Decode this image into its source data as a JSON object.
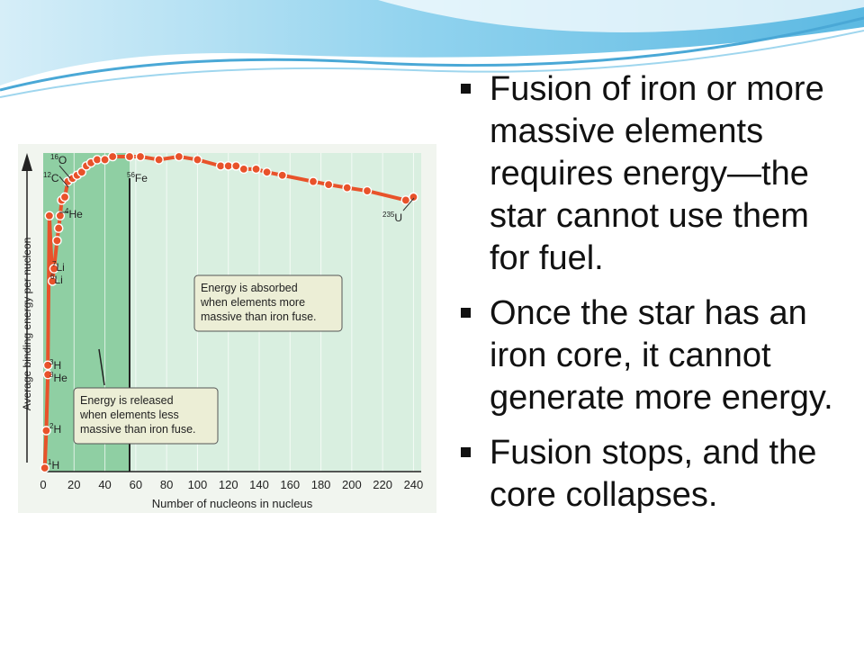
{
  "slide": {
    "bullets": [
      {
        "text": "Fusion of iron or more massive elements requires energy—the star cannot use them for fuel."
      },
      {
        "text": "Once the star has an iron core, it cannot generate more energy."
      },
      {
        "text": "Fusion stops, and the core collapses."
      }
    ]
  },
  "colors": {
    "curve": "#e8522a",
    "released_region": "#8fcfa3",
    "absorbed_region": "#d9efe0",
    "callout_bg": "#eceed6",
    "header_blue": "#6fc3e6"
  },
  "chart_data": {
    "type": "line",
    "xlabel": "Number of nucleons in nucleus",
    "ylabel": "Average binding energy per nucleon",
    "xlim": [
      0,
      245
    ],
    "ylim": [
      0,
      1
    ],
    "xticks": [
      "0",
      "20",
      "40",
      "60",
      "80",
      "100",
      "120",
      "140",
      "160",
      "180",
      "200",
      "220",
      "240"
    ],
    "xtick_values": [
      0,
      20,
      40,
      60,
      80,
      100,
      120,
      140,
      160,
      180,
      200,
      220,
      240
    ],
    "iron_line_x": 56,
    "points": [
      [
        1,
        0.0
      ],
      [
        2,
        0.12
      ],
      [
        3,
        0.3
      ],
      [
        3,
        0.33
      ],
      [
        4,
        0.81
      ],
      [
        6,
        0.6
      ],
      [
        7,
        0.64
      ],
      [
        9,
        0.73
      ],
      [
        10,
        0.77
      ],
      [
        11,
        0.81
      ],
      [
        12,
        0.86
      ],
      [
        14,
        0.87
      ],
      [
        16,
        0.92
      ],
      [
        19,
        0.93
      ],
      [
        22,
        0.94
      ],
      [
        25,
        0.95
      ],
      [
        28,
        0.97
      ],
      [
        31,
        0.98
      ],
      [
        35,
        0.99
      ],
      [
        40,
        0.99
      ],
      [
        45,
        1.0
      ],
      [
        56,
        1.0
      ],
      [
        63,
        1.0
      ],
      [
        75,
        0.99
      ],
      [
        88,
        1.0
      ],
      [
        100,
        0.99
      ],
      [
        115,
        0.97
      ],
      [
        120,
        0.97
      ],
      [
        125,
        0.97
      ],
      [
        130,
        0.96
      ],
      [
        138,
        0.96
      ],
      [
        145,
        0.95
      ],
      [
        155,
        0.94
      ],
      [
        175,
        0.92
      ],
      [
        185,
        0.91
      ],
      [
        197,
        0.9
      ],
      [
        210,
        0.89
      ],
      [
        235,
        0.86
      ],
      [
        240,
        0.87
      ]
    ],
    "isotope_labels": [
      {
        "mass": "1",
        "sym": "H"
      },
      {
        "mass": "2",
        "sym": "H"
      },
      {
        "mass": "3",
        "sym": "He"
      },
      {
        "mass": "3",
        "sym": "H"
      },
      {
        "mass": "6",
        "sym": "Li"
      },
      {
        "mass": "7",
        "sym": "Li"
      },
      {
        "mass": "4",
        "sym": "He"
      },
      {
        "mass": "12",
        "sym": "C"
      },
      {
        "mass": "16",
        "sym": "O"
      },
      {
        "mass": "56",
        "sym": "Fe"
      },
      {
        "mass": "235",
        "sym": "U"
      }
    ],
    "annotations": [
      {
        "lines": [
          "Energy is released",
          "when elements less",
          "massive than iron fuse."
        ]
      },
      {
        "lines": [
          "Energy is absorbed",
          "when elements more",
          "massive than iron fuse."
        ]
      }
    ]
  }
}
